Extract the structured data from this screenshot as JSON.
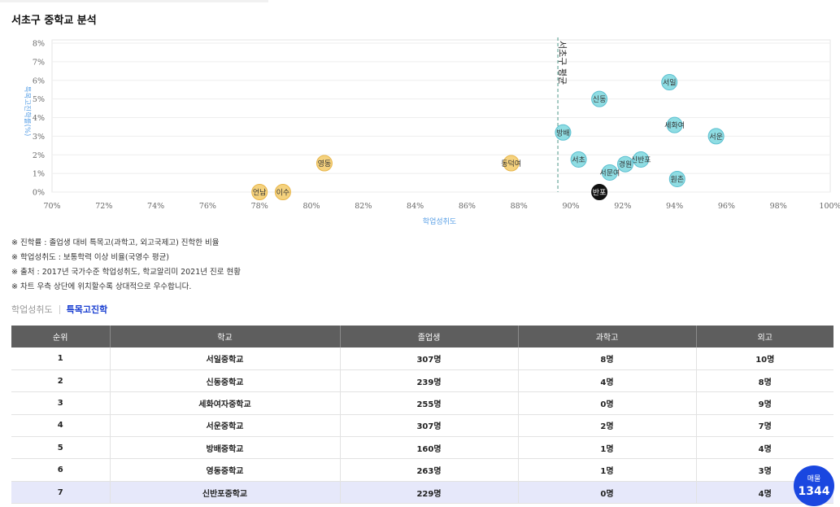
{
  "page": {
    "title": "서초구 중학교 분석"
  },
  "chart_data": {
    "type": "scatter",
    "xlabel": "학업성취도",
    "ylabel": "특목고진학률(%)",
    "xlim": [
      70,
      100
    ],
    "ylim": [
      0,
      8
    ],
    "x_ticks": [
      "70%",
      "72%",
      "74%",
      "76%",
      "78%",
      "80%",
      "82%",
      "84%",
      "86%",
      "88%",
      "90%",
      "92%",
      "94%",
      "96%",
      "98%",
      "100%"
    ],
    "y_ticks": [
      "0%",
      "1%",
      "2%",
      "3%",
      "4%",
      "5%",
      "6%",
      "7%",
      "8%"
    ],
    "grid": true,
    "reference_line": {
      "x": 89.5,
      "label": "서초구 평균"
    },
    "colors": {
      "above": "#8fdde3",
      "above_stroke": "#5bbfd0",
      "below": "#f5d27e",
      "below_stroke": "#e7b54a",
      "selected": "#111111",
      "axis_label": "#5aa0e6",
      "reference": "#6aa89a"
    },
    "points": [
      {
        "label": "서일",
        "x": 93.8,
        "y": 5.9,
        "group": "above"
      },
      {
        "label": "신동",
        "x": 91.1,
        "y": 5.0,
        "group": "above"
      },
      {
        "label": "세화여",
        "x": 94.0,
        "y": 3.6,
        "group": "above"
      },
      {
        "label": "서운",
        "x": 95.6,
        "y": 3.0,
        "group": "above"
      },
      {
        "label": "방배",
        "x": 89.7,
        "y": 3.2,
        "group": "above"
      },
      {
        "label": "서초",
        "x": 90.3,
        "y": 1.75,
        "group": "above"
      },
      {
        "label": "신반포",
        "x": 92.7,
        "y": 1.75,
        "group": "above"
      },
      {
        "label": "경원",
        "x": 92.1,
        "y": 1.5,
        "group": "above"
      },
      {
        "label": "서문여",
        "x": 91.5,
        "y": 1.05,
        "group": "above"
      },
      {
        "label": "원촌",
        "x": 94.1,
        "y": 0.7,
        "group": "above"
      },
      {
        "label": "반포",
        "x": 91.1,
        "y": 0.0,
        "group": "selected"
      },
      {
        "label": "영동",
        "x": 80.5,
        "y": 1.55,
        "group": "below"
      },
      {
        "label": "동덕여",
        "x": 87.7,
        "y": 1.55,
        "group": "below"
      },
      {
        "label": "언남",
        "x": 78.0,
        "y": 0.0,
        "group": "below"
      },
      {
        "label": "이수",
        "x": 78.9,
        "y": 0.0,
        "group": "below"
      }
    ]
  },
  "notes": [
    "※ 진학률 : 졸업생 대비 특목고(과학고, 외고국제고) 진학한 비율",
    "※ 학업성취도 : 보통학력 이상 비율(국영수 평균)",
    "※ 출처 : 2017년 국가수준 학업성취도, 학교알리미 2021년 진로 현황",
    "※ 차트 우측 상단에 위치할수록 상대적으로 우수합니다."
  ],
  "tabs": [
    {
      "label": "학업성취도",
      "active": false
    },
    {
      "label": "특목고진학",
      "active": true
    }
  ],
  "table": {
    "columns": [
      "순위",
      "학교",
      "졸업생",
      "과학고",
      "외고"
    ],
    "rows": [
      [
        "1",
        "서일중학교",
        "307명",
        "8명",
        "10명"
      ],
      [
        "2",
        "신동중학교",
        "239명",
        "4명",
        "8명"
      ],
      [
        "3",
        "세화여자중학교",
        "255명",
        "0명",
        "9명"
      ],
      [
        "4",
        "서운중학교",
        "307명",
        "2명",
        "7명"
      ],
      [
        "5",
        "방배중학교",
        "160명",
        "1명",
        "4명"
      ],
      [
        "6",
        "영동중학교",
        "263명",
        "1명",
        "3명"
      ],
      [
        "7",
        "신반포중학교",
        "229명",
        "0명",
        "4명"
      ]
    ],
    "highlight_row": 6
  },
  "float_badge": {
    "label": "매물",
    "value": "1344"
  }
}
